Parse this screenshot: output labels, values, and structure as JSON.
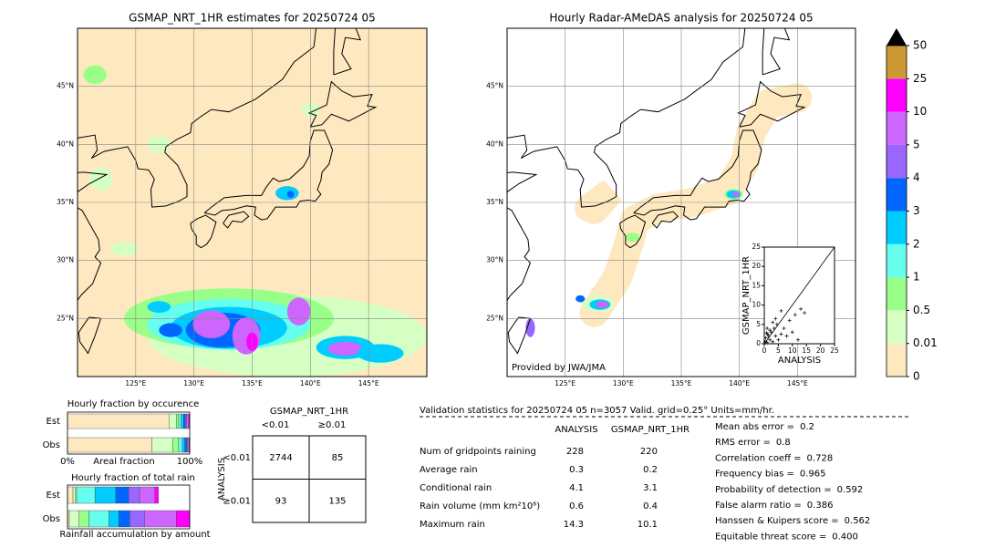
{
  "maps": [
    {
      "title": "GSMAP_NRT_1HR estimates for 20250724 05",
      "xlim": [
        120,
        150
      ],
      "ylim": [
        20,
        50
      ],
      "xticks": [
        {
          "value": 125,
          "label": "125°E"
        },
        {
          "value": 130,
          "label": "130°E"
        },
        {
          "value": 135,
          "label": "135°E"
        },
        {
          "value": 140,
          "label": "140°E"
        },
        {
          "value": 145,
          "label": "145°E"
        }
      ],
      "yticks": [
        {
          "value": 25,
          "label": "25°N"
        },
        {
          "value": 30,
          "label": "30°N"
        },
        {
          "value": 35,
          "label": "35°N"
        },
        {
          "value": 40,
          "label": "40°N"
        },
        {
          "value": 45,
          "label": "45°N"
        }
      ]
    },
    {
      "title": "Hourly Radar-AMeDAS analysis for 20250724 05",
      "xlim": [
        120,
        150
      ],
      "ylim": [
        20,
        50
      ],
      "xticks": [
        {
          "value": 125,
          "label": "125°E"
        },
        {
          "value": 130,
          "label": "130°E"
        },
        {
          "value": 135,
          "label": "135°E"
        },
        {
          "value": 140,
          "label": "140°E"
        },
        {
          "value": 145,
          "label": "145°E"
        }
      ],
      "yticks": [
        {
          "value": 25,
          "label": "25°N"
        },
        {
          "value": 30,
          "label": "30°N"
        },
        {
          "value": 35,
          "label": "35°N"
        },
        {
          "value": 40,
          "label": "40°N"
        },
        {
          "value": 45,
          "label": "45°N"
        }
      ],
      "credit": "Provided by JWA/JMA"
    }
  ],
  "colorbar": {
    "levels": [
      0,
      0.01,
      0.5,
      1,
      2,
      3,
      4,
      5,
      10,
      25,
      50
    ],
    "colors": [
      "#fee8c0",
      "#d6ffc4",
      "#99ff88",
      "#66ffee",
      "#00ccff",
      "#0066ff",
      "#9966ff",
      "#cc66ff",
      "#ff00ff",
      "#cc9933"
    ],
    "over_color": "#000000"
  },
  "scatter": {
    "xlabel": "ANALYSIS",
    "ylabel": "GSMAP_NRT_1HR",
    "xlim": [
      0,
      25
    ],
    "ylim": [
      0,
      25
    ],
    "xticks": [
      0,
      5,
      10,
      15,
      20,
      25
    ],
    "yticks": [
      0,
      5,
      10,
      15,
      20,
      25
    ],
    "x": [
      0.3,
      0.5,
      1,
      1.2,
      1.5,
      2,
      2.5,
      3,
      3.5,
      4,
      4.5,
      5,
      6,
      7,
      8,
      9,
      10,
      11,
      12,
      13,
      14.3,
      3,
      4,
      6,
      2,
      1,
      0.8
    ],
    "y": [
      0.5,
      1.5,
      0.3,
      2.5,
      2,
      1,
      3,
      0.5,
      4,
      2,
      5,
      1,
      2.5,
      4,
      2,
      6,
      3,
      7.5,
      1,
      9,
      8,
      5.5,
      6.5,
      8.5,
      3.5,
      4,
      2.8
    ]
  },
  "occurrence": {
    "title": "Hourly fraction by occurence",
    "rows": [
      "Est",
      "Obs"
    ],
    "xlabel": "Areal fraction",
    "xlim": [
      0,
      100
    ],
    "xticks": [
      {
        "value": 0,
        "label": "0%"
      },
      {
        "value": 100,
        "label": "100%"
      }
    ],
    "est": [
      83,
      6,
      2,
      2,
      2,
      1.5,
      1,
      1.5,
      1
    ],
    "obs": [
      69,
      17,
      5,
      3,
      2,
      1.5,
      1,
      1,
      0.5
    ]
  },
  "total_rain": {
    "title": "Hourly fraction of total rain",
    "rows": [
      "Est",
      "Obs"
    ],
    "xlabel": "Rainfall accumulation by amount",
    "xlim": [
      0,
      100
    ],
    "est": [
      4.5,
      2,
      1,
      15,
      17,
      10.5,
      9,
      12.5,
      3
    ],
    "obs": [
      1.5,
      8,
      8,
      16.5,
      8,
      9,
      12,
      26,
      11
    ]
  },
  "contingency": {
    "title": "GSMAP_NRT_1HR",
    "cols": [
      "<0.01",
      "≥0.01"
    ],
    "row_title": "ANALYSIS",
    "rows": [
      "<0.01",
      "≥0.01"
    ],
    "cells": [
      [
        2744,
        85
      ],
      [
        93,
        135
      ]
    ]
  },
  "validation": {
    "header": "Validation statistics for 20250724 05  n=3057 Valid. grid=0.25° Units=mm/hr.",
    "columns": [
      "ANALYSIS",
      "GSMAP_NRT_1HR"
    ],
    "rows": [
      {
        "label": "Num of gridpoints raining",
        "values": [
          228,
          220
        ]
      },
      {
        "label": "Average rain",
        "values": [
          0.3,
          0.2
        ]
      },
      {
        "label": "Conditional rain",
        "values": [
          4.1,
          3.1
        ]
      },
      {
        "label": "Rain volume (mm km²10⁶)",
        "values": [
          0.6,
          0.4
        ]
      },
      {
        "label": "Maximum rain",
        "values": [
          14.3,
          10.1
        ]
      }
    ],
    "scores": [
      {
        "label": "Mean abs error =",
        "value": 0.2
      },
      {
        "label": "RMS error =",
        "value": 0.8
      },
      {
        "label": "Correlation coeff =",
        "value": 0.728
      },
      {
        "label": "Frequency bias =",
        "value": 0.965
      },
      {
        "label": "Probability of detection =",
        "value": 0.592
      },
      {
        "label": "False alarm ratio =",
        "value": 0.386
      },
      {
        "label": "Hanssen & Kuipers score =",
        "value": 0.562
      },
      {
        "label": "Equitable threat score =",
        "value": {
          "value": 0.4,
          "label": "0.400"
        }
      }
    ]
  }
}
